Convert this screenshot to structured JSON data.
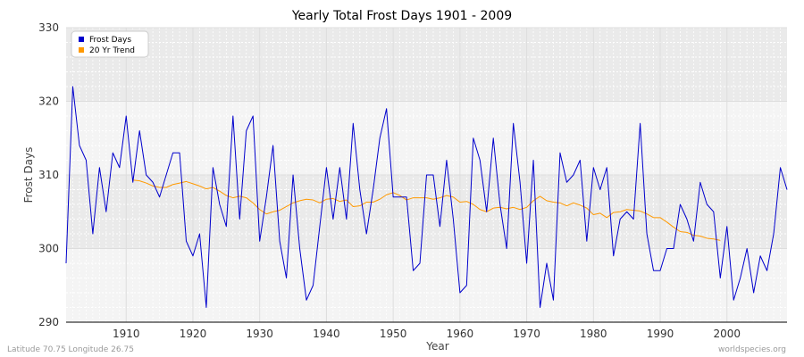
{
  "chart_data": {
    "type": "line",
    "title": "Yearly Total Frost Days 1901 - 2009",
    "xlabel": "Year",
    "ylabel": "Frost Days",
    "xlim": [
      1901,
      2009
    ],
    "ylim": [
      290,
      330
    ],
    "xticks": [
      1910,
      1920,
      1930,
      1940,
      1950,
      1960,
      1970,
      1980,
      1990,
      2000
    ],
    "yticks": [
      290,
      300,
      310,
      320,
      330
    ],
    "grid": true,
    "legend_position": "top-left",
    "series": [
      {
        "name": "Frost Days",
        "color": "#0000cc",
        "x": [
          1901,
          1902,
          1903,
          1904,
          1905,
          1906,
          1907,
          1908,
          1909,
          1910,
          1911,
          1912,
          1913,
          1914,
          1915,
          1916,
          1917,
          1918,
          1919,
          1920,
          1921,
          1922,
          1923,
          1924,
          1925,
          1926,
          1927,
          1928,
          1929,
          1930,
          1931,
          1932,
          1933,
          1934,
          1935,
          1936,
          1937,
          1938,
          1939,
          1940,
          1941,
          1942,
          1943,
          1944,
          1945,
          1946,
          1947,
          1948,
          1949,
          1950,
          1951,
          1952,
          1953,
          1954,
          1955,
          1956,
          1957,
          1958,
          1959,
          1960,
          1961,
          1962,
          1963,
          1964,
          1965,
          1966,
          1967,
          1968,
          1969,
          1970,
          1971,
          1972,
          1973,
          1974,
          1975,
          1976,
          1977,
          1978,
          1979,
          1980,
          1981,
          1982,
          1983,
          1984,
          1985,
          1986,
          1987,
          1988,
          1989,
          1990,
          1991,
          1992,
          1993,
          1994,
          1995,
          1996,
          1997,
          1998,
          1999,
          2000,
          2001,
          2002,
          2003,
          2004,
          2005,
          2006,
          2007,
          2008,
          2009
        ],
        "values": [
          298,
          322,
          314,
          312,
          302,
          311,
          305,
          313,
          311,
          318,
          309,
          316,
          310,
          309,
          307,
          310,
          313,
          313,
          301,
          299,
          302,
          292,
          311,
          306,
          303,
          318,
          304,
          316,
          318,
          301,
          307,
          314,
          301,
          296,
          310,
          300,
          293,
          295,
          303,
          311,
          304,
          311,
          304,
          317,
          308,
          302,
          308,
          315,
          319,
          307,
          307,
          307,
          297,
          298,
          310,
          310,
          303,
          312,
          304,
          294,
          295,
          315,
          312,
          305,
          315,
          306,
          300,
          317,
          309,
          298,
          312,
          292,
          298,
          293,
          313,
          309,
          310,
          312,
          301,
          311,
          308,
          311,
          299,
          304,
          305,
          304,
          317,
          302,
          297,
          297,
          300,
          300,
          306,
          304,
          301,
          309,
          306,
          305,
          296,
          303,
          293,
          296,
          300,
          294,
          299,
          297,
          302,
          311,
          308
        ]
      },
      {
        "name": "20 Yr Trend",
        "color": "#ff9900",
        "x": [
          1911,
          1912,
          1913,
          1914,
          1915,
          1916,
          1917,
          1918,
          1919,
          1920,
          1921,
          1922,
          1923,
          1924,
          1925,
          1926,
          1927,
          1928,
          1929,
          1930,
          1931,
          1932,
          1933,
          1934,
          1935,
          1936,
          1937,
          1938,
          1939,
          1940,
          1941,
          1942,
          1943,
          1944,
          1945,
          1946,
          1947,
          1948,
          1949,
          1950,
          1951,
          1952,
          1953,
          1954,
          1955,
          1956,
          1957,
          1958,
          1959,
          1960,
          1961,
          1962,
          1963,
          1964,
          1965,
          1966,
          1967,
          1968,
          1969,
          1970,
          1971,
          1972,
          1973,
          1974,
          1975,
          1976,
          1977,
          1978,
          1979,
          1980,
          1981,
          1982,
          1983,
          1984,
          1985,
          1986,
          1987,
          1988,
          1989,
          1990,
          1991,
          1992,
          1993,
          1994,
          1995,
          1996,
          1997,
          1998,
          1999
        ],
        "values": [
          309.3,
          309.2,
          308.9,
          308.5,
          308.3,
          308.3,
          308.7,
          308.9,
          309.1,
          308.8,
          308.5,
          308.1,
          308.3,
          307.8,
          307.2,
          306.9,
          307.1,
          306.9,
          306.2,
          305.3,
          304.7,
          305.0,
          305.2,
          305.7,
          306.2,
          306.5,
          306.7,
          306.6,
          306.2,
          306.7,
          306.8,
          306.4,
          306.6,
          305.7,
          305.8,
          306.3,
          306.3,
          306.7,
          307.3,
          307.6,
          307.2,
          306.6,
          306.9,
          306.9,
          306.9,
          306.7,
          306.9,
          307.2,
          307.0,
          306.3,
          306.4,
          306.0,
          305.3,
          305.0,
          305.5,
          305.6,
          305.4,
          305.6,
          305.3,
          305.6,
          306.5,
          307.1,
          306.5,
          306.3,
          306.2,
          305.8,
          306.2,
          305.9,
          305.5,
          304.6,
          304.8,
          304.2,
          304.9,
          305.0,
          305.3,
          305.2,
          305.1,
          304.7,
          304.2,
          304.2,
          303.6,
          302.9,
          302.3,
          302.2,
          301.8,
          301.7,
          301.4,
          301.3,
          301.1
        ]
      }
    ]
  },
  "footer": {
    "left": "Latitude 70.75 Longitude 26.75",
    "right": "worldspecies.org"
  }
}
